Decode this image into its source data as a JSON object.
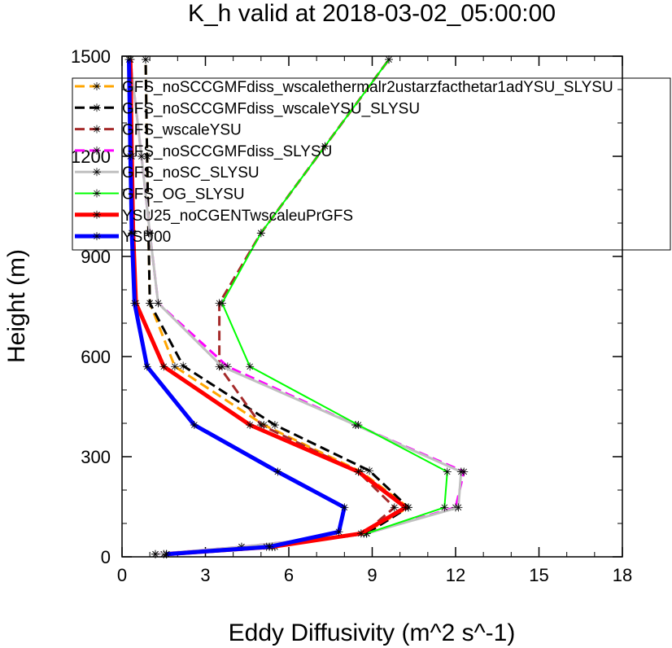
{
  "chart_data": {
    "type": "line",
    "title": "K_h valid at 2018-03-02_05:00:00",
    "xlabel": "Eddy Diffusivity (m^2 s^-1)",
    "ylabel": "Height (m)",
    "xlim": [
      0,
      18
    ],
    "ylim": [
      0,
      1500
    ],
    "xticks": [
      "0",
      "3",
      "6",
      "9",
      "12",
      "15",
      "18"
    ],
    "yticks": [
      "0",
      "300",
      "600",
      "900",
      "1200",
      "1500"
    ],
    "legend_position": "top-right",
    "grid": false,
    "series": [
      {
        "name": "GFS_noSCCGMFdiss_wscalethermalr2ustarzfacthetar1adYSU_SLYSU",
        "color": "#ffa500",
        "dash": "dash",
        "width": 3,
        "x": [
          1.6,
          5.5,
          8.7,
          10.3,
          8.6,
          5.1,
          1.9,
          1.0,
          0.95,
          0.9,
          0.85
        ],
        "y": [
          8,
          30,
          70,
          148,
          255,
          395,
          570,
          760,
          970,
          1200,
          1490
        ]
      },
      {
        "name": "GFS_noSCCGMFdiss_wscaleYSU_SLYSU",
        "color": "#000000",
        "dash": "dash",
        "width": 3,
        "x": [
          1.5,
          5.4,
          8.8,
          10.3,
          8.9,
          5.5,
          2.2,
          1.0,
          0.95,
          0.9,
          0.85
        ],
        "y": [
          8,
          30,
          70,
          148,
          258,
          395,
          572,
          760,
          970,
          1200,
          1490
        ]
      },
      {
        "name": "GFS_wscaleYSU",
        "color": "#a52a2a",
        "dash": "dash",
        "width": 3,
        "x": [
          1.5,
          5.5,
          8.7,
          9.8,
          8.5,
          5.0,
          3.5,
          3.5,
          5.0,
          7.3,
          9.6
        ],
        "y": [
          8,
          30,
          70,
          148,
          255,
          395,
          570,
          760,
          970,
          1230,
          1490
        ]
      },
      {
        "name": "GFS_noSCCGMFdiss_SLYSU",
        "color": "#ff00ff",
        "dash": "dash",
        "width": 3,
        "x": [
          1.2,
          4.3,
          8.8,
          12.0,
          12.3,
          8.4,
          3.8,
          1.3,
          1.0,
          0.7,
          0.3
        ],
        "y": [
          8,
          30,
          70,
          148,
          255,
          395,
          570,
          760,
          970,
          1200,
          1490
        ]
      },
      {
        "name": "GFS_noSC_SLYSU",
        "color": "#c0c0c0",
        "dash": "solid",
        "width": 3,
        "x": [
          1.2,
          4.3,
          8.8,
          12.1,
          12.2,
          8.4,
          3.6,
          1.3,
          1.0,
          0.7,
          0.3
        ],
        "y": [
          8,
          30,
          70,
          148,
          255,
          395,
          570,
          760,
          970,
          1200,
          1490
        ]
      },
      {
        "name": "GFS_OG_SLYSU",
        "color": "#00ff00",
        "dash": "solid",
        "width": 2,
        "x": [
          1.6,
          5.2,
          8.8,
          11.6,
          11.7,
          8.5,
          4.6,
          3.6,
          5.0,
          7.3,
          9.6
        ],
        "y": [
          8,
          30,
          70,
          148,
          255,
          395,
          570,
          760,
          970,
          1230,
          1490
        ]
      },
      {
        "name": "YSU25_noCGENTwscaleuPrGFS",
        "color": "#ff0000",
        "dash": "solid",
        "width": 5,
        "x": [
          1.6,
          5.4,
          8.6,
          10.2,
          8.5,
          4.6,
          1.5,
          0.5,
          0.4,
          0.35,
          0.3
        ],
        "y": [
          8,
          30,
          70,
          148,
          255,
          395,
          570,
          760,
          970,
          1200,
          1490
        ]
      },
      {
        "name": "YSU00",
        "color": "#0000ff",
        "dash": "solid",
        "width": 5,
        "x": [
          1.6,
          5.3,
          7.8,
          8.0,
          5.6,
          2.6,
          0.9,
          0.45,
          0.35,
          0.3,
          0.25
        ],
        "y": [
          8,
          30,
          75,
          148,
          255,
          395,
          570,
          760,
          970,
          1200,
          1490
        ]
      }
    ]
  }
}
